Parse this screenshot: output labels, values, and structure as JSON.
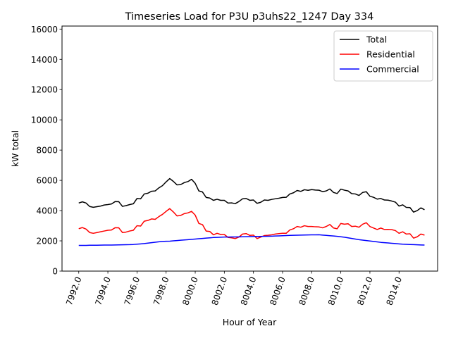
{
  "chart_data": {
    "type": "line",
    "title": "Timeseries Load for P3U p3uhs22_1247  Day 334",
    "xlabel": "Hour of Year",
    "ylabel": "kW total",
    "xlim": [
      7990.85,
      8016.65
    ],
    "ylim": [
      0,
      16200
    ],
    "xticks": [
      7992,
      7994,
      7996,
      7998,
      8000,
      8002,
      8004,
      8006,
      8008,
      8010,
      8012,
      8014
    ],
    "xtick_labels": [
      "7992.0",
      "7994.0",
      "7996.0",
      "7998.0",
      "8000.0",
      "8002.0",
      "8004.0",
      "8006.0",
      "8008.0",
      "8010.0",
      "8012.0",
      "8014.0"
    ],
    "yticks": [
      0,
      2000,
      4000,
      6000,
      8000,
      10000,
      12000,
      14000,
      16000
    ],
    "ytick_labels": [
      "0",
      "2000",
      "4000",
      "6000",
      "8000",
      "10000",
      "12000",
      "14000",
      "16000"
    ],
    "grid": false,
    "legend_position": "top-right",
    "x_start": 7992,
    "x_step": 0.25,
    "series": [
      {
        "name": "Total",
        "color": "#000000",
        "values": [
          4500,
          4580,
          4500,
          4270,
          4220,
          4260,
          4300,
          4370,
          4400,
          4440,
          4600,
          4590,
          4280,
          4330,
          4400,
          4450,
          4800,
          4780,
          5100,
          5150,
          5280,
          5300,
          5500,
          5650,
          5900,
          6120,
          5930,
          5700,
          5720,
          5850,
          5920,
          6070,
          5800,
          5300,
          5230,
          4870,
          4830,
          4680,
          4750,
          4680,
          4680,
          4500,
          4510,
          4460,
          4600,
          4780,
          4800,
          4680,
          4700,
          4480,
          4550,
          4700,
          4680,
          4740,
          4780,
          4820,
          4870,
          4880,
          5100,
          5180,
          5330,
          5270,
          5380,
          5340,
          5390,
          5360,
          5350,
          5250,
          5300,
          5430,
          5200,
          5130,
          5420,
          5350,
          5300,
          5120,
          5100,
          5000,
          5200,
          5250,
          4950,
          4880,
          4760,
          4800,
          4700,
          4690,
          4630,
          4560,
          4300,
          4380,
          4210,
          4200,
          3900,
          4000,
          4180,
          4060
        ]
      },
      {
        "name": "Residential",
        "color": "#ff0000",
        "values": [
          2800,
          2880,
          2780,
          2550,
          2500,
          2550,
          2600,
          2650,
          2700,
          2720,
          2870,
          2860,
          2550,
          2580,
          2650,
          2700,
          3000,
          2980,
          3300,
          3350,
          3450,
          3420,
          3600,
          3750,
          3950,
          4130,
          3910,
          3650,
          3680,
          3800,
          3850,
          3950,
          3700,
          3150,
          3070,
          2650,
          2620,
          2400,
          2500,
          2420,
          2420,
          2230,
          2200,
          2150,
          2250,
          2450,
          2480,
          2360,
          2380,
          2150,
          2250,
          2350,
          2370,
          2400,
          2450,
          2480,
          2500,
          2500,
          2720,
          2800,
          2950,
          2900,
          3000,
          2950,
          2950,
          2930,
          2920,
          2860,
          2950,
          3080,
          2850,
          2800,
          3150,
          3100,
          3130,
          2950,
          2970,
          2900,
          3100,
          3200,
          2950,
          2850,
          2750,
          2850,
          2750,
          2760,
          2740,
          2680,
          2500,
          2600,
          2450,
          2470,
          2180,
          2270,
          2450,
          2380
        ]
      },
      {
        "name": "Commercial",
        "color": "#0000ff",
        "values": [
          1700,
          1700,
          1700,
          1710,
          1710,
          1710,
          1715,
          1720,
          1720,
          1725,
          1730,
          1735,
          1740,
          1745,
          1750,
          1760,
          1780,
          1800,
          1820,
          1850,
          1880,
          1910,
          1940,
          1960,
          1970,
          1980,
          2000,
          2020,
          2040,
          2060,
          2080,
          2100,
          2120,
          2140,
          2160,
          2180,
          2200,
          2220,
          2230,
          2240,
          2250,
          2250,
          2255,
          2260,
          2265,
          2270,
          2275,
          2280,
          2285,
          2290,
          2295,
          2300,
          2305,
          2310,
          2320,
          2330,
          2340,
          2350,
          2360,
          2370,
          2375,
          2380,
          2385,
          2390,
          2395,
          2400,
          2405,
          2380,
          2360,
          2340,
          2320,
          2300,
          2270,
          2240,
          2200,
          2160,
          2120,
          2080,
          2050,
          2020,
          1990,
          1960,
          1930,
          1900,
          1880,
          1860,
          1840,
          1820,
          1800,
          1780,
          1770,
          1760,
          1750,
          1740,
          1730,
          1720
        ]
      }
    ]
  }
}
